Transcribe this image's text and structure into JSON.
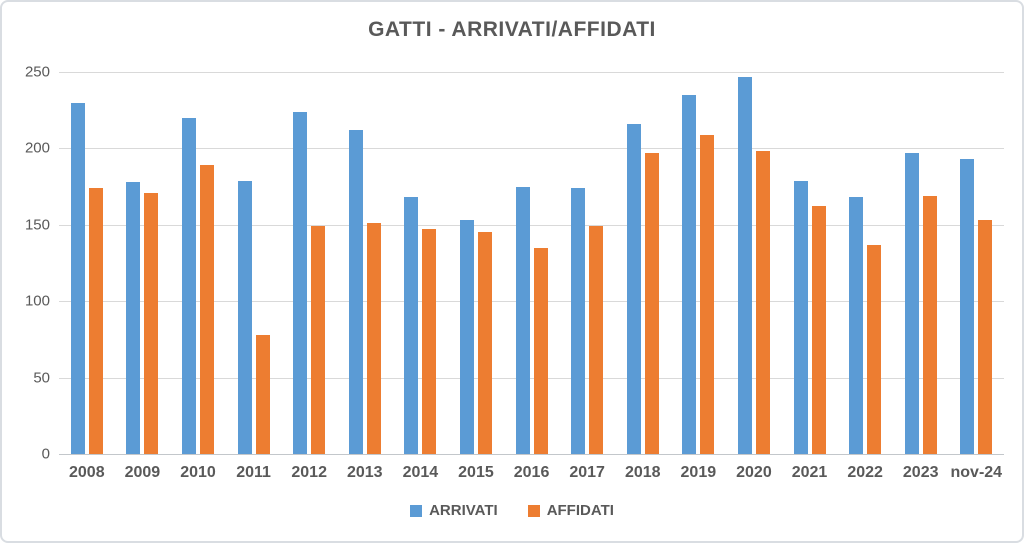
{
  "title": "GATTI - ARRIVATI/AFFIDATI",
  "chart_data": {
    "type": "bar",
    "title": "GATTI - ARRIVATI/AFFIDATI",
    "categories": [
      "2008",
      "2009",
      "2010",
      "2011",
      "2012",
      "2013",
      "2014",
      "2015",
      "2016",
      "2017",
      "2018",
      "2019",
      "2020",
      "2021",
      "2022",
      "2023",
      "nov-24"
    ],
    "series": [
      {
        "name": "ARRIVATI",
        "color": "#5B9BD5",
        "values": [
          230,
          178,
          220,
          179,
          224,
          212,
          168,
          153,
          175,
          174,
          216,
          235,
          247,
          179,
          168,
          197,
          193
        ]
      },
      {
        "name": "AFFIDATI",
        "color": "#ED7D31",
        "values": [
          174,
          171,
          189,
          78,
          149,
          151,
          147,
          145,
          135,
          149,
          197,
          209,
          198,
          162,
          137,
          169,
          153
        ]
      }
    ],
    "xlabel": "",
    "ylabel": "",
    "ylim": [
      0,
      250
    ],
    "yticks": [
      0,
      50,
      100,
      150,
      200,
      250
    ],
    "grid": true,
    "legend_position": "bottom"
  },
  "colors": {
    "series_arrivati": "#5B9BD5",
    "series_affidati": "#ED7D31",
    "title_text": "#595959",
    "axis_text": "#595959",
    "gridline": "#D9D9D9",
    "baseline": "#C3C7CB",
    "frame_border": "#D9DDE2",
    "background": "#FFFFFF"
  }
}
